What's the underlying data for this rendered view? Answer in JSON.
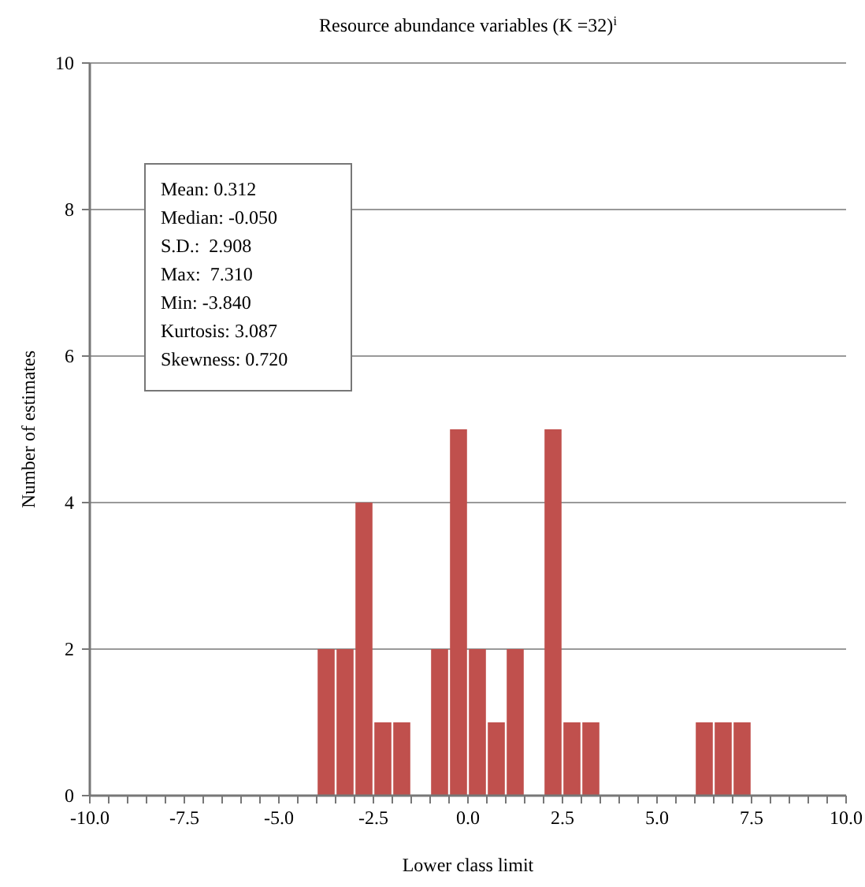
{
  "chart_data": {
    "type": "histogram",
    "title": "Resource abundance variables (K =32)$^{i}$",
    "xlabel": "Lower class limit",
    "ylabel": "Number of estimates",
    "bins": [
      -10,
      -9.5,
      -9,
      -8.5,
      -8,
      -7.5,
      -7,
      -6.5,
      -6,
      -5.5,
      -5,
      -4.5,
      -4,
      -3.5,
      -3,
      -2.5,
      -2,
      -1.5,
      -1,
      -0.5,
      0,
      0.5,
      1,
      1.5,
      2,
      2.5,
      3,
      3.5,
      4,
      4.5,
      5,
      5.5,
      6,
      6.5,
      7,
      7.5,
      8,
      8.5,
      9,
      9.5,
      10
    ],
    "values": [
      0,
      0,
      0,
      0,
      0,
      0,
      0,
      0,
      0,
      0,
      0,
      0,
      2,
      2,
      4,
      1,
      1,
      0,
      2,
      5,
      2,
      1,
      2,
      0,
      5,
      1,
      1,
      0,
      0,
      0,
      0,
      0,
      1,
      1,
      1,
      0,
      0,
      0,
      0,
      0
    ],
    "color": "#c0504d",
    "xlim": [
      -10,
      10
    ],
    "xticks": [
      {
        "value": -10,
        "label": "-10.0"
      },
      {
        "value": -9.5,
        "label": null
      },
      {
        "value": -9,
        "label": null
      },
      {
        "value": -8.5,
        "label": null
      },
      {
        "value": -8,
        "label": null
      },
      {
        "value": -7.5,
        "label": "-7.5"
      },
      {
        "value": -7,
        "label": null
      },
      {
        "value": -6.5,
        "label": null
      },
      {
        "value": -6,
        "label": null
      },
      {
        "value": -5.5,
        "label": null
      },
      {
        "value": -5,
        "label": "-5.0"
      },
      {
        "value": -4.5,
        "label": null
      },
      {
        "value": -4,
        "label": null
      },
      {
        "value": -3.5,
        "label": null
      },
      {
        "value": -3,
        "label": null
      },
      {
        "value": -2.5,
        "label": "-2.5"
      },
      {
        "value": -2,
        "label": null
      },
      {
        "value": -1.5,
        "label": null
      },
      {
        "value": -1,
        "label": null
      },
      {
        "value": -0.5,
        "label": null
      },
      {
        "value": 0,
        "label": "0.0"
      },
      {
        "value": 0.5,
        "label": null
      },
      {
        "value": 1,
        "label": null
      },
      {
        "value": 1.5,
        "label": null
      },
      {
        "value": 2,
        "label": null
      },
      {
        "value": 2.5,
        "label": "2.5"
      },
      {
        "value": 3,
        "label": null
      },
      {
        "value": 3.5,
        "label": null
      },
      {
        "value": 4,
        "label": null
      },
      {
        "value": 4.5,
        "label": null
      },
      {
        "value": 5,
        "label": "5.0"
      },
      {
        "value": 5.5,
        "label": null
      },
      {
        "value": 6,
        "label": null
      },
      {
        "value": 6.5,
        "label": null
      },
      {
        "value": 7,
        "label": null
      },
      {
        "value": 7.5,
        "label": "7.5"
      },
      {
        "value": 8,
        "label": null
      },
      {
        "value": 8.5,
        "label": null
      },
      {
        "value": 9,
        "label": null
      },
      {
        "value": 9.5,
        "label": null
      },
      {
        "value": 10,
        "label": "10.0"
      }
    ],
    "ylim": [
      0,
      10
    ],
    "yticks": [
      0,
      2,
      4,
      6,
      8,
      10
    ],
    "grid": "y",
    "annotations": [
      "Mean: 0.312",
      "Median: -0.050",
      "S.D.:  2.908",
      "Max:  7.310",
      "Min: -3.840",
      "Kurtosis: 3.087",
      "Skewness: 0.720"
    ]
  }
}
